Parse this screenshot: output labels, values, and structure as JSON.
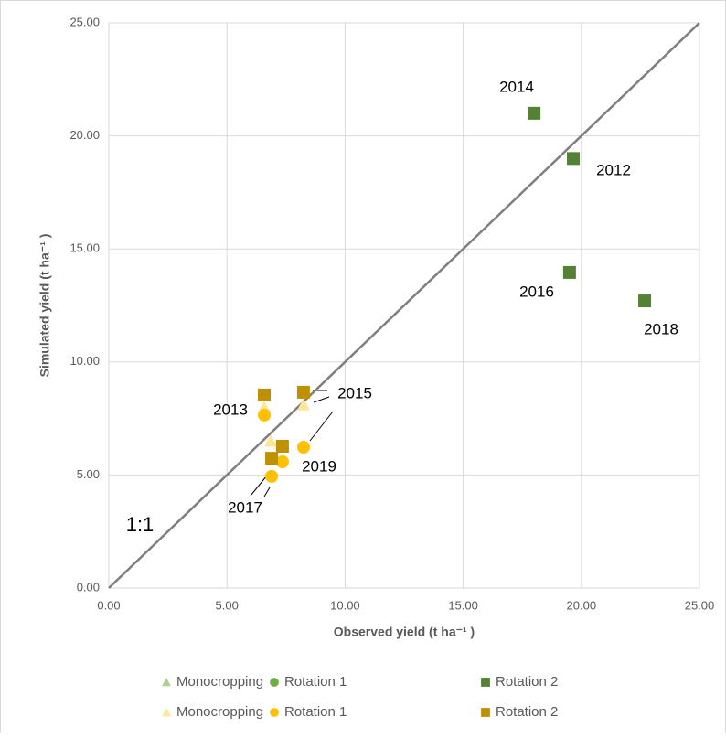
{
  "chart_data": {
    "type": "scatter",
    "xlabel": "Observed yield (t ha⁻¹ )",
    "ylabel": "Simulated yield (t ha⁻¹ )",
    "xlim": [
      0,
      25
    ],
    "ylim": [
      0,
      25
    ],
    "xticks": [
      {
        "value": 0,
        "label": "0.00"
      },
      {
        "value": 5,
        "label": "5.00"
      },
      {
        "value": 10,
        "label": "10.00"
      },
      {
        "value": 15,
        "label": "15.00"
      },
      {
        "value": 20,
        "label": "20.00"
      },
      {
        "value": 25,
        "label": "25.00"
      }
    ],
    "yticks": [
      {
        "value": 0,
        "label": "0.00"
      },
      {
        "value": 5,
        "label": "5.00"
      },
      {
        "value": 10,
        "label": "10.00"
      },
      {
        "value": 15,
        "label": "15.00"
      },
      {
        "value": 20,
        "label": "20.00"
      },
      {
        "value": 25,
        "label": "25.00"
      }
    ],
    "grid": true,
    "series": [
      {
        "name": "Monocropping",
        "color": "#a9d18e",
        "marker": "triangle",
        "x": [],
        "values": []
      },
      {
        "name": "Rotation 1",
        "color": "#70ad47",
        "marker": "circle",
        "x": [],
        "values": []
      },
      {
        "name": "Rotation 2",
        "color": "#548235",
        "marker": "square",
        "x": [
          18.0,
          19.66,
          19.5,
          22.68
        ],
        "values": [
          21.0,
          19.0,
          13.96,
          12.7
        ]
      },
      {
        "name": "Monocropping",
        "color": "#ffe699",
        "marker": "triangle",
        "x": [
          6.58,
          6.85,
          8.24
        ],
        "values": [
          8.0,
          6.5,
          8.1
        ]
      },
      {
        "name": "Rotation 1",
        "color": "#ffc000",
        "marker": "circle",
        "x": [
          6.58,
          6.89,
          7.35,
          8.24
        ],
        "values": [
          7.65,
          4.94,
          5.58,
          6.23
        ]
      },
      {
        "name": "Rotation 2",
        "color": "#bf9000",
        "marker": "square",
        "x": [
          6.58,
          6.89,
          7.35,
          8.24
        ],
        "values": [
          8.54,
          5.74,
          6.27,
          8.66
        ]
      }
    ],
    "annotations": [
      "2014",
      "2012",
      "2016",
      "2018",
      "2013",
      "2015",
      "2019",
      "2017",
      "1:1"
    ]
  }
}
